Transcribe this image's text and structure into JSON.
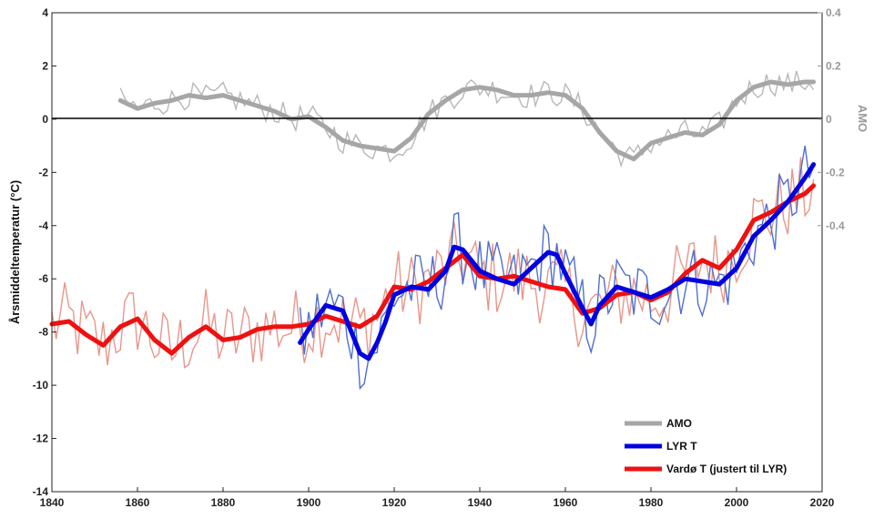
{
  "chart_data": {
    "type": "line",
    "xlabel": "",
    "ylabel": "Årsmiddeltemperatur (°C)",
    "y2label": "AMO",
    "xlim": [
      1840,
      2020
    ],
    "ylim": [
      -14,
      4
    ],
    "y2lim": [
      -0.4,
      0.4
    ],
    "x_ticks": [
      "1840",
      "1860",
      "1880",
      "1900",
      "1920",
      "1940",
      "1960",
      "1980",
      "2000",
      "2020"
    ],
    "y_ticks": [
      "4",
      "2",
      "0",
      "-2",
      "-4",
      "-6",
      "-8",
      "-10",
      "-12",
      "-14"
    ],
    "y2_ticks": [
      "0.4",
      "0.2",
      "0",
      "-0.2",
      "-0.4"
    ],
    "zero_line": true,
    "legend_position": "bottom-right",
    "legend": [
      "AMO",
      "LYR T",
      "Vardø T (justert til LYR)"
    ],
    "colors": {
      "amo_raw": "#b8b8b8",
      "amo_smooth": "#a6a6a6",
      "lyr_raw": "#4f6fd0",
      "lyr_smooth": "#0000e0",
      "vardo_raw": "#e8968a",
      "vardo_smooth": "#ee1111",
      "axis": "#222222"
    },
    "series": [
      {
        "name": "AMO",
        "axis": "right",
        "x": [
          1856,
          1860,
          1864,
          1868,
          1872,
          1876,
          1880,
          1884,
          1888,
          1892,
          1896,
          1900,
          1904,
          1908,
          1912,
          1916,
          1920,
          1924,
          1928,
          1932,
          1936,
          1940,
          1944,
          1948,
          1952,
          1956,
          1960,
          1964,
          1968,
          1972,
          1976,
          1980,
          1984,
          1988,
          1992,
          1996,
          2000,
          2004,
          2008,
          2012,
          2016,
          2018
        ],
        "values": [
          0.07,
          0.04,
          0.06,
          0.07,
          0.09,
          0.08,
          0.09,
          0.07,
          0.05,
          0.03,
          0.0,
          0.01,
          -0.03,
          -0.08,
          -0.1,
          -0.11,
          -0.12,
          -0.07,
          0.02,
          0.07,
          0.11,
          0.12,
          0.11,
          0.09,
          0.09,
          0.1,
          0.09,
          0.04,
          -0.05,
          -0.12,
          -0.15,
          -0.09,
          -0.07,
          -0.05,
          -0.06,
          -0.02,
          0.07,
          0.12,
          0.14,
          0.13,
          0.14,
          0.14
        ]
      },
      {
        "name": "LYR T",
        "axis": "left",
        "x": [
          1898,
          1900,
          1904,
          1908,
          1910,
          1912,
          1914,
          1916,
          1918,
          1920,
          1924,
          1928,
          1932,
          1934,
          1936,
          1940,
          1944,
          1948,
          1952,
          1956,
          1958,
          1960,
          1964,
          1966,
          1968,
          1972,
          1976,
          1980,
          1984,
          1988,
          1992,
          1996,
          2000,
          2004,
          2008,
          2012,
          2016,
          2018
        ],
        "values": [
          -8.4,
          -7.9,
          -7.0,
          -7.2,
          -8.0,
          -8.8,
          -9.0,
          -8.4,
          -7.6,
          -6.6,
          -6.3,
          -6.4,
          -5.7,
          -4.8,
          -4.9,
          -5.7,
          -6.0,
          -6.2,
          -5.6,
          -5.0,
          -5.1,
          -5.8,
          -7.1,
          -7.7,
          -7.0,
          -6.3,
          -6.5,
          -6.7,
          -6.4,
          -6.0,
          -6.1,
          -6.2,
          -5.6,
          -4.4,
          -3.8,
          -3.1,
          -2.2,
          -1.7
        ]
      },
      {
        "name": "Vardø T (justert til LYR)",
        "axis": "left",
        "x": [
          1840,
          1844,
          1848,
          1852,
          1856,
          1860,
          1864,
          1868,
          1872,
          1876,
          1880,
          1884,
          1888,
          1892,
          1896,
          1900,
          1904,
          1908,
          1912,
          1916,
          1920,
          1924,
          1928,
          1932,
          1936,
          1940,
          1944,
          1948,
          1952,
          1956,
          1960,
          1964,
          1968,
          1972,
          1976,
          1980,
          1984,
          1988,
          1992,
          1996,
          2000,
          2004,
          2008,
          2012,
          2016,
          2018
        ],
        "values": [
          -7.7,
          -7.6,
          -8.1,
          -8.5,
          -7.8,
          -7.5,
          -8.3,
          -8.8,
          -8.2,
          -7.8,
          -8.3,
          -8.2,
          -7.9,
          -7.8,
          -7.8,
          -7.7,
          -7.4,
          -7.6,
          -7.8,
          -7.4,
          -6.3,
          -6.4,
          -6.1,
          -5.6,
          -5.1,
          -5.9,
          -6.0,
          -5.9,
          -6.1,
          -6.3,
          -6.4,
          -7.3,
          -7.1,
          -6.6,
          -6.5,
          -6.8,
          -6.5,
          -5.8,
          -5.3,
          -5.6,
          -4.9,
          -3.8,
          -3.5,
          -3.1,
          -2.8,
          -2.5
        ]
      }
    ]
  }
}
